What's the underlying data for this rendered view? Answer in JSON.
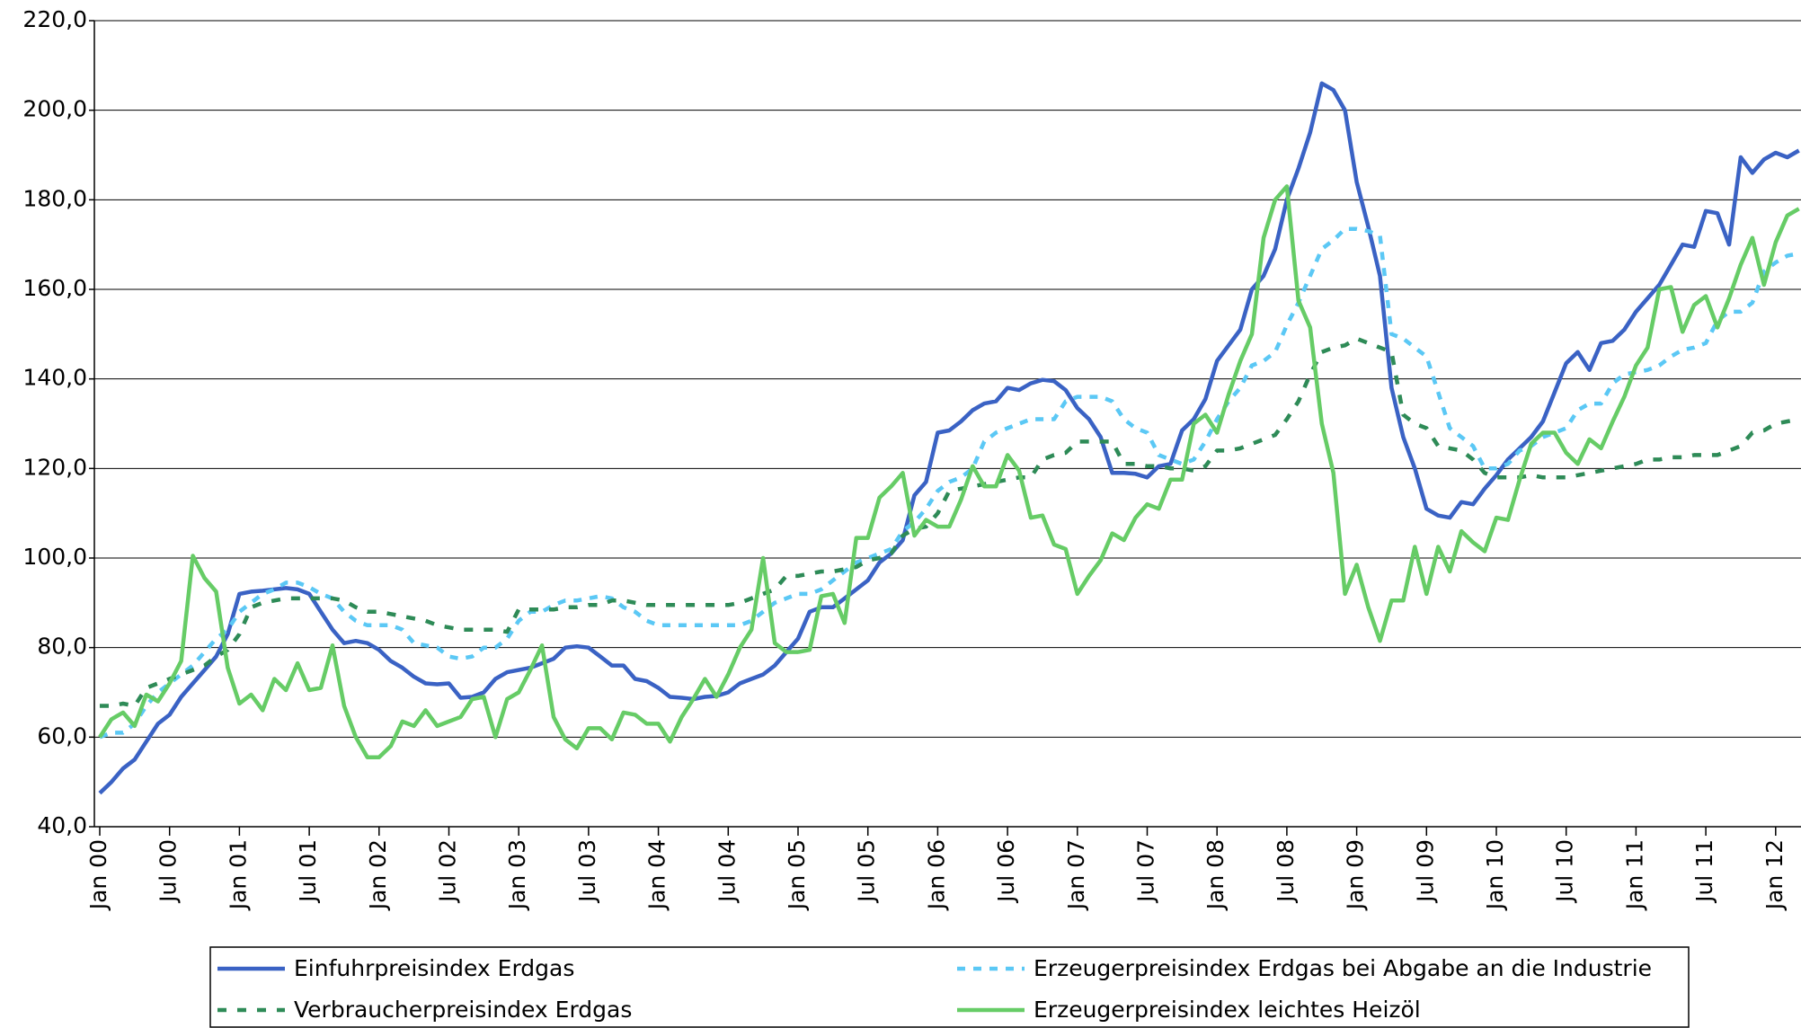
{
  "chart_data": {
    "type": "line",
    "categories": [
      "Jan 00",
      null,
      null,
      null,
      null,
      null,
      "Jul 00",
      null,
      null,
      null,
      null,
      null,
      "Jan 01",
      null,
      null,
      null,
      null,
      null,
      "Jul 01",
      null,
      null,
      null,
      null,
      null,
      "Jan 02",
      null,
      null,
      null,
      null,
      null,
      "Jul 02",
      null,
      null,
      null,
      null,
      null,
      "Jan 03",
      null,
      null,
      null,
      null,
      null,
      "Jul 03",
      null,
      null,
      null,
      null,
      null,
      "Jan 04",
      null,
      null,
      null,
      null,
      null,
      "Jul 04",
      null,
      null,
      null,
      null,
      null,
      "Jan 05",
      null,
      null,
      null,
      null,
      null,
      "Jul 05",
      null,
      null,
      null,
      null,
      null,
      "Jan 06",
      null,
      null,
      null,
      null,
      null,
      "Jul 06",
      null,
      null,
      null,
      null,
      null,
      "Jan 07",
      null,
      null,
      null,
      null,
      null,
      "Jul 07",
      null,
      null,
      null,
      null,
      null,
      "Jan 08",
      null,
      null,
      null,
      null,
      null,
      "Jul 08",
      null,
      null,
      null,
      null,
      null,
      "Jan 09",
      null,
      null,
      null,
      null,
      null,
      "Jul 09",
      null,
      null,
      null,
      null,
      null,
      "Jan 10",
      null,
      null,
      null,
      null,
      null,
      "Jul 10",
      null,
      null,
      null,
      null,
      null,
      "Jan 11",
      null,
      null,
      null,
      null,
      null,
      "Jul 11",
      null,
      null,
      null,
      null,
      null,
      "Jan 12",
      null,
      null
    ],
    "ylim": [
      40,
      220
    ],
    "yticks": [
      {
        "value": 40,
        "label": "40,0"
      },
      {
        "value": 60,
        "label": "60,0"
      },
      {
        "value": 80,
        "label": "80,0"
      },
      {
        "value": 100,
        "label": "100,0"
      },
      {
        "value": 120,
        "label": "120,0"
      },
      {
        "value": 140,
        "label": "140,0"
      },
      {
        "value": 160,
        "label": "160,0"
      },
      {
        "value": 180,
        "label": "180,0"
      },
      {
        "value": 200,
        "label": "200,0"
      },
      {
        "value": 220,
        "label": "220,0"
      }
    ],
    "grid": true,
    "series": [
      {
        "name": "Einfuhrpreisindex Erdgas",
        "color": "#3a62c4",
        "dash": "solid",
        "values": [
          47.5,
          50,
          53,
          55,
          59,
          63,
          65,
          69,
          72,
          75,
          78,
          83,
          92,
          92.5,
          92.7,
          93,
          93.3,
          93,
          92,
          88,
          84,
          81,
          81.5,
          81,
          79.5,
          77,
          75.5,
          73.5,
          72,
          71.8,
          72,
          68.8,
          69,
          70,
          73,
          74.5,
          75,
          75.5,
          76.5,
          77.5,
          80,
          80.3,
          80,
          78,
          76,
          76,
          73,
          72.5,
          71,
          69,
          68.8,
          68.5,
          69,
          69.2,
          70,
          72,
          73,
          74,
          76,
          79,
          82,
          88,
          89,
          89,
          91,
          93,
          95,
          99,
          101,
          104,
          114,
          117,
          128,
          128.5,
          130.5,
          133,
          134.5,
          135,
          138,
          137.5,
          139,
          139.8,
          139.5,
          137.5,
          133.5,
          131,
          127,
          119,
          119,
          118.8,
          118,
          120.5,
          121,
          128.5,
          131,
          135.5,
          144,
          147.5,
          151,
          160,
          163,
          169,
          180,
          187,
          195,
          206,
          204.5,
          200,
          184,
          174,
          163,
          138,
          127,
          120,
          111,
          109.5,
          109,
          112.5,
          112,
          115.5,
          118.5,
          122,
          124.5,
          127,
          130.5,
          137,
          143.5,
          146,
          142,
          148,
          148.5,
          151,
          155,
          158,
          161,
          165.5,
          170,
          169.5,
          177.5,
          177,
          170,
          189.5,
          186,
          189,
          190.5,
          189.5,
          191
        ]
      },
      {
        "name": "Erzeugerpreisindex Erdgas bei Abgabe an die Industrie",
        "color": "#5bc8f5",
        "dash": "dotted",
        "values": [
          60,
          61,
          61,
          63,
          67,
          70,
          72,
          74,
          76,
          79,
          82,
          84,
          88,
          90,
          92,
          93,
          94.5,
          94.5,
          93.5,
          92,
          91,
          88,
          86,
          85,
          85,
          85,
          84,
          81,
          80.5,
          80,
          78,
          77.5,
          78,
          80,
          80,
          82,
          86,
          88,
          88,
          89.5,
          90.5,
          90.5,
          91,
          91.5,
          91,
          89,
          88,
          86,
          85,
          85,
          85,
          85,
          85,
          85,
          85,
          85,
          86,
          88,
          90,
          91,
          92,
          92,
          93,
          95,
          97,
          99,
          100,
          101,
          102,
          106,
          108,
          111,
          115,
          117,
          118,
          120,
          126,
          128,
          129,
          130,
          131,
          131,
          131,
          135,
          136,
          136,
          136,
          135,
          131,
          129,
          128,
          123,
          122,
          121,
          122,
          126,
          131,
          135,
          138,
          143,
          144,
          146,
          152,
          157,
          163,
          169,
          171,
          173.5,
          173.5,
          173,
          172,
          150,
          149,
          147,
          145,
          137,
          129,
          127,
          125,
          120,
          120,
          121,
          124,
          125,
          127,
          128,
          129,
          133,
          134.5,
          134.5,
          139,
          141,
          141.5,
          142,
          143,
          145,
          146.5,
          147,
          148,
          153,
          155,
          155,
          157,
          164,
          166,
          167.5,
          168
        ]
      },
      {
        "name": "Verbraucherpreisindex Erdgas",
        "color": "#2e8b57",
        "dash": "dashed",
        "values": [
          67,
          67,
          67.5,
          67,
          71,
          72,
          73,
          74,
          75,
          76,
          78,
          79.5,
          83,
          89,
          90,
          90.5,
          91,
          91,
          91,
          91,
          91,
          90.5,
          89,
          88,
          88,
          87.5,
          87,
          86.5,
          86,
          85,
          84.5,
          84,
          84,
          84,
          84,
          83.5,
          88.5,
          88.5,
          88.5,
          88.5,
          89,
          89,
          89.5,
          89.5,
          90.5,
          90.5,
          90,
          89.5,
          89.5,
          89.5,
          89.5,
          89.5,
          89.5,
          89.5,
          89.5,
          90,
          91,
          92,
          93,
          96,
          96,
          96.5,
          97,
          97,
          97.5,
          98,
          99.5,
          100,
          101,
          105,
          106.5,
          107,
          110,
          115,
          115.5,
          116,
          116.5,
          117,
          117.5,
          118,
          118,
          122,
          123,
          123.5,
          126,
          126,
          126,
          126,
          121,
          121,
          120.5,
          120.5,
          120,
          120,
          119.5,
          120.5,
          124,
          124,
          124.5,
          125.5,
          126.5,
          127.5,
          131,
          135,
          141,
          146,
          147,
          147.5,
          149,
          148,
          147,
          146,
          132,
          130,
          129,
          125,
          124.5,
          124,
          122,
          119,
          118,
          118,
          118,
          118.5,
          118,
          118,
          118,
          118.5,
          119,
          119.5,
          120,
          120.5,
          121,
          122,
          122,
          122.5,
          122.5,
          123,
          123,
          123,
          124,
          125,
          128,
          128.5,
          130,
          130.5,
          131
        ]
      },
      {
        "name": "Erzeugerpreisindex leichtes Heizöl",
        "color": "#66cc66",
        "dash": "solid",
        "values": [
          60,
          64,
          65.5,
          62.5,
          69.5,
          68,
          72,
          77,
          100.5,
          95.5,
          92.5,
          75.5,
          67.5,
          69.5,
          66,
          73,
          70.5,
          76.5,
          70.5,
          71,
          80.5,
          67,
          60,
          55.5,
          55.5,
          58,
          63.5,
          62.5,
          66,
          62.5,
          63.5,
          64.5,
          68.5,
          69,
          60,
          68.5,
          70,
          75,
          80.5,
          64.5,
          59.5,
          57.5,
          62,
          62,
          59.5,
          65.5,
          65,
          63,
          63,
          59,
          64.5,
          68.5,
          73,
          69,
          74,
          80,
          84,
          100,
          81,
          79,
          79,
          79.5,
          91.5,
          92,
          85.5,
          104.5,
          104.5,
          113.5,
          116,
          119,
          105,
          108.5,
          107,
          107,
          113,
          120.5,
          116,
          116,
          123,
          119.5,
          109,
          109.5,
          103,
          102,
          92,
          96,
          99.5,
          105.5,
          104,
          109,
          112,
          111,
          117.5,
          117.5,
          130,
          132,
          128,
          136.5,
          144,
          150,
          171.5,
          180,
          183,
          157.5,
          151.5,
          130,
          119,
          92,
          98.5,
          89,
          81.5,
          90.5,
          90.5,
          102.5,
          92,
          102.5,
          97,
          106,
          103.5,
          101.5,
          109,
          108.5,
          117.5,
          125.5,
          128,
          128,
          123.5,
          121,
          126.5,
          124.5,
          130.5,
          136,
          143,
          147,
          160,
          160.5,
          150.5,
          156.5,
          158.5,
          151.5,
          158,
          165.5,
          171.5,
          161,
          170.5,
          176.5,
          178
        ]
      }
    ]
  }
}
